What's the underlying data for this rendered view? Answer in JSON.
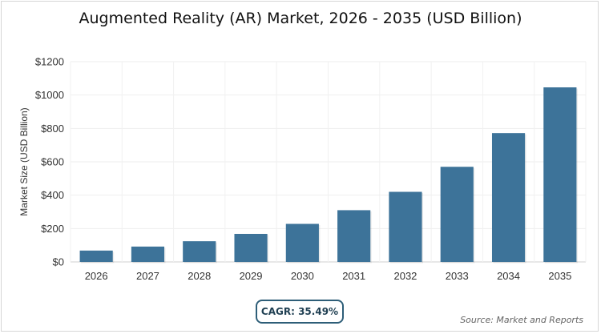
{
  "chart_data": {
    "type": "bar",
    "title": "Augmented Reality (AR) Market, 2026 - 2035 (USD Billion)",
    "xlabel": "",
    "ylabel": "Market Size (USD Billion)",
    "categories": [
      "2026",
      "2027",
      "2028",
      "2029",
      "2030",
      "2031",
      "2032",
      "2033",
      "2034",
      "2035"
    ],
    "values": [
      68,
      92,
      124,
      168,
      228,
      310,
      420,
      570,
      772,
      1046
    ],
    "ylim": [
      0,
      1200
    ],
    "yticks": [
      0,
      200,
      400,
      600,
      800,
      1000,
      1200
    ],
    "ytick_labels": [
      "$0",
      "$200",
      "$400",
      "$600",
      "$800",
      "$1000",
      "$1200"
    ],
    "grid": true,
    "bar_color": "#3d7399"
  },
  "annotations": {
    "cagr": "CAGR: 35.49%",
    "source": "Source: Market and Reports"
  }
}
